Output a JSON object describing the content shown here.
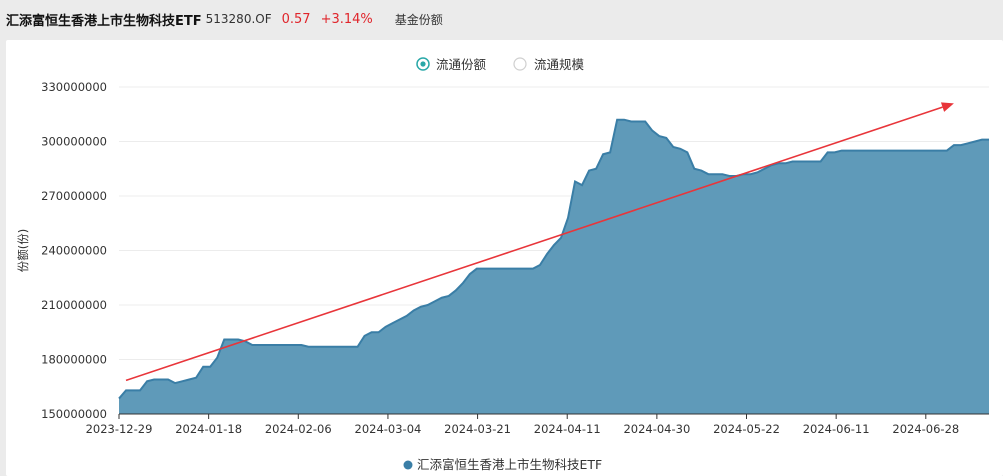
{
  "header": {
    "fund_name": "汇添富恒生香港上市生物科技ETF",
    "fund_code": "513280.OF",
    "price": "0.57",
    "change": "+3.14%",
    "section": "基金份额"
  },
  "toggles": [
    {
      "label": "流通份额",
      "selected": true
    },
    {
      "label": "流通规模",
      "selected": false
    }
  ],
  "colors": {
    "series": "#3a7ea6",
    "fill": "#5f9ab9",
    "trend": "#e8353a",
    "toggle_on": "#2aa8a8"
  },
  "chart_data": {
    "type": "area",
    "ylabel": "份额(份)",
    "ylim": [
      150000000,
      330000000
    ],
    "yticks": [
      "150000000",
      "180000000",
      "210000000",
      "240000000",
      "270000000",
      "300000000",
      "330000000"
    ],
    "xticks": [
      "2023-12-29",
      "2024-01-18",
      "2024-02-06",
      "2024-03-04",
      "2024-03-21",
      "2024-04-11",
      "2024-04-30",
      "2024-05-22",
      "2024-06-11",
      "2024-06-28"
    ],
    "legend": "汇添富恒生香港上市生物科技ETF",
    "grid": true,
    "series": [
      {
        "name": "汇添富恒生香港上市生物科技ETF",
        "values": [
          [
            0,
            158.5
          ],
          [
            1,
            163
          ],
          [
            2,
            163
          ],
          [
            3,
            163
          ],
          [
            4,
            168
          ],
          [
            5,
            169
          ],
          [
            6,
            169
          ],
          [
            7,
            169
          ],
          [
            8,
            167
          ],
          [
            9,
            168
          ],
          [
            10,
            169
          ],
          [
            11,
            170
          ],
          [
            12,
            176
          ],
          [
            13,
            176
          ],
          [
            14,
            181
          ],
          [
            15,
            191
          ],
          [
            16,
            191
          ],
          [
            17,
            191
          ],
          [
            18,
            190
          ],
          [
            19,
            188
          ],
          [
            20,
            188
          ],
          [
            21,
            188
          ],
          [
            22,
            188
          ],
          [
            23,
            188
          ],
          [
            24,
            188
          ],
          [
            25,
            188
          ],
          [
            26,
            188
          ],
          [
            27,
            187
          ],
          [
            28,
            187
          ],
          [
            29,
            187
          ],
          [
            30,
            187
          ],
          [
            31,
            187
          ],
          [
            32,
            187
          ],
          [
            33,
            187
          ],
          [
            34,
            187
          ],
          [
            35,
            193
          ],
          [
            36,
            195
          ],
          [
            37,
            195
          ],
          [
            38,
            198
          ],
          [
            39,
            200
          ],
          [
            40,
            202
          ],
          [
            41,
            204
          ],
          [
            42,
            207
          ],
          [
            43,
            209
          ],
          [
            44,
            210
          ],
          [
            45,
            212
          ],
          [
            46,
            214
          ],
          [
            47,
            215
          ],
          [
            48,
            218
          ],
          [
            49,
            222
          ],
          [
            50,
            227
          ],
          [
            51,
            230
          ],
          [
            52,
            230
          ],
          [
            53,
            230
          ],
          [
            54,
            230
          ],
          [
            55,
            230
          ],
          [
            56,
            230
          ],
          [
            57,
            230
          ],
          [
            58,
            230
          ],
          [
            59,
            230
          ],
          [
            60,
            232
          ],
          [
            61,
            238
          ],
          [
            62,
            243
          ],
          [
            63,
            247
          ],
          [
            64,
            258
          ],
          [
            65,
            278
          ],
          [
            66,
            276
          ],
          [
            67,
            284
          ],
          [
            68,
            285
          ],
          [
            69,
            293
          ],
          [
            70,
            294
          ],
          [
            71,
            312
          ],
          [
            72,
            312
          ],
          [
            73,
            311
          ],
          [
            74,
            311
          ],
          [
            75,
            311
          ],
          [
            76,
            306
          ],
          [
            77,
            303
          ],
          [
            78,
            302
          ],
          [
            79,
            297
          ],
          [
            80,
            296
          ],
          [
            81,
            294
          ],
          [
            82,
            285
          ],
          [
            83,
            284
          ],
          [
            84,
            282
          ],
          [
            85,
            282
          ],
          [
            86,
            282
          ],
          [
            87,
            281
          ],
          [
            88,
            281
          ],
          [
            89,
            282
          ],
          [
            90,
            282
          ],
          [
            91,
            283
          ],
          [
            92,
            285
          ],
          [
            93,
            287
          ],
          [
            94,
            288
          ],
          [
            95,
            288
          ],
          [
            96,
            289
          ],
          [
            97,
            289
          ],
          [
            98,
            289
          ],
          [
            99,
            289
          ],
          [
            100,
            289
          ],
          [
            101,
            294
          ],
          [
            102,
            294
          ],
          [
            103,
            295
          ],
          [
            104,
            295
          ],
          [
            105,
            295
          ],
          [
            106,
            295
          ],
          [
            107,
            295
          ],
          [
            108,
            295
          ],
          [
            109,
            295
          ],
          [
            110,
            295
          ],
          [
            111,
            295
          ],
          [
            112,
            295
          ],
          [
            113,
            295
          ],
          [
            114,
            295
          ],
          [
            115,
            295
          ],
          [
            116,
            295
          ],
          [
            117,
            295
          ],
          [
            118,
            295
          ],
          [
            119,
            298
          ],
          [
            120,
            298
          ],
          [
            121,
            299
          ],
          [
            122,
            300
          ],
          [
            123,
            301
          ],
          [
            124,
            301
          ]
        ]
      }
    ],
    "trend_line": {
      "from": [
        1,
        168.5
      ],
      "to": [
        119,
        321
      ]
    }
  }
}
